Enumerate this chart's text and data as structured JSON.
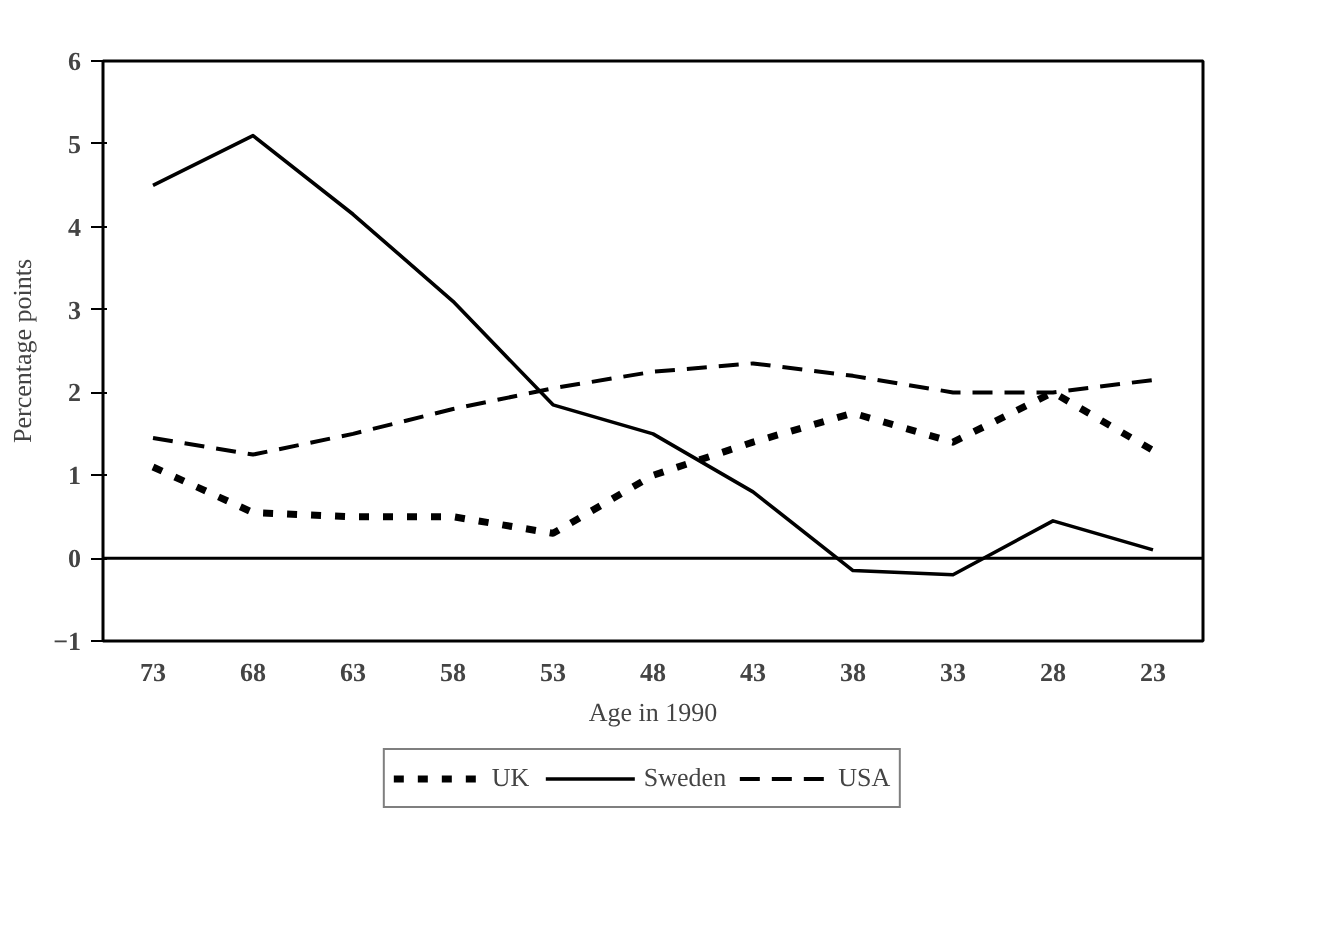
{
  "chart_data": {
    "type": "line",
    "xlabel": "Age in 1990",
    "ylabel": "Percentage points",
    "categories": [
      "73",
      "68",
      "63",
      "58",
      "53",
      "48",
      "43",
      "38",
      "33",
      "28",
      "23"
    ],
    "series": [
      {
        "name": "UK",
        "color": "#000000",
        "line_style": "dotted",
        "values": [
          1.1,
          0.55,
          0.5,
          0.5,
          0.3,
          1.0,
          1.4,
          1.75,
          1.4,
          2.0,
          1.3
        ]
      },
      {
        "name": "Sweden",
        "color": "#000000",
        "line_style": "solid",
        "values": [
          4.5,
          5.1,
          4.15,
          3.1,
          1.85,
          1.5,
          0.8,
          -0.15,
          -0.2,
          0.45,
          0.1
        ]
      },
      {
        "name": "USA",
        "color": "#000000",
        "line_style": "dashed",
        "values": [
          1.45,
          1.25,
          1.5,
          1.8,
          2.05,
          2.25,
          2.35,
          2.2,
          2.0,
          2.0,
          2.15
        ]
      }
    ],
    "ylim": [
      -1,
      6
    ],
    "yticks": [
      -1,
      0,
      1,
      2,
      3,
      4,
      5,
      6
    ],
    "ref_lines": [
      {
        "axis": "y",
        "value": 0,
        "color": "#000000"
      }
    ],
    "grid": false,
    "legend": "bottom",
    "marker": "none"
  }
}
